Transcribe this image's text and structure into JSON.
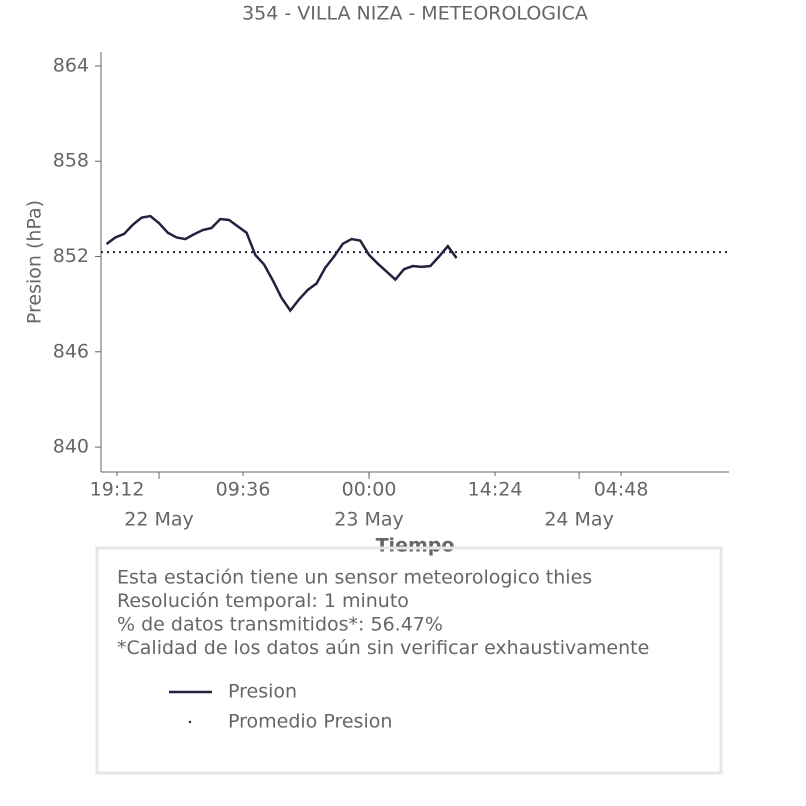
{
  "chart_data": {
    "type": "line",
    "title": "354 - VILLA NIZA - METEOROLOGICA",
    "xlabel": "Tiempo",
    "ylabel": "Presion (hPa)",
    "x": [
      "21 May 18:00",
      "21 May 19:00",
      "21 May 20:00",
      "21 May 21:00",
      "21 May 22:00",
      "21 May 23:00",
      "22 May 00:00",
      "22 May 01:00",
      "22 May 02:00",
      "22 May 03:00",
      "22 May 04:00",
      "22 May 05:00",
      "22 May 06:00",
      "22 May 07:00",
      "22 May 08:00",
      "22 May 09:00",
      "22 May 10:00",
      "22 May 11:00",
      "22 May 12:00",
      "22 May 13:00",
      "22 May 14:00",
      "22 May 15:00",
      "22 May 16:00",
      "22 May 17:00",
      "22 May 18:00",
      "22 May 19:00",
      "22 May 20:00",
      "22 May 21:00",
      "22 May 22:00",
      "22 May 23:00",
      "23 May 00:00",
      "23 May 01:00",
      "23 May 02:00",
      "23 May 03:00",
      "23 May 04:00",
      "23 May 05:00",
      "23 May 06:00",
      "23 May 07:00",
      "23 May 08:00",
      "23 May 09:00",
      "23 May 10:00"
    ],
    "series": [
      {
        "name": "Presion",
        "color": "#22223f",
        "values": [
          852.79,
          853.2,
          853.42,
          854.0,
          854.45,
          854.55,
          854.1,
          853.5,
          853.2,
          853.1,
          853.4,
          853.67,
          853.8,
          854.36,
          854.3,
          853.9,
          853.5,
          852.1,
          851.5,
          850.5,
          849.4,
          848.6,
          849.3,
          849.9,
          850.3,
          851.3,
          852.0,
          852.8,
          853.1,
          853.0,
          852.1,
          851.55,
          851.05,
          850.55,
          851.2,
          851.4,
          851.35,
          851.4,
          852.0,
          852.65,
          851.9
        ]
      },
      {
        "name": "Promedio Presion",
        "color": "#22223f",
        "value": 852.28,
        "style": "dotted"
      }
    ],
    "xlim": [
      "21 May 17:22",
      "24 May 17:08"
    ],
    "xticks": [
      {
        "value": "21 May 19:12",
        "label": "19:12"
      },
      {
        "value": "22 May 09:36",
        "label": "09:36"
      },
      {
        "value": "23 May 00:00",
        "label": "00:00"
      },
      {
        "value": "23 May 14:24",
        "label": "14:24"
      },
      {
        "value": "24 May 04:48",
        "label": "04:48"
      }
    ],
    "xticks_major": [
      {
        "value": "22 May 00:00",
        "label": "22 May"
      },
      {
        "value": "23 May 00:00",
        "label": "23 May"
      },
      {
        "value": "24 May 00:00",
        "label": "24 May"
      }
    ],
    "ylim": [
      838.43,
      864.88
    ],
    "yticks": [
      840,
      846,
      852,
      858,
      864
    ],
    "notes": [
      "Esta estación tiene un sensor meteorologico thies",
      "Resolución temporal: 1 minuto",
      "% de datos transmitidos*: 56.47%",
      "*Calidad de los datos aún sin verificar exhaustivamente"
    ]
  }
}
